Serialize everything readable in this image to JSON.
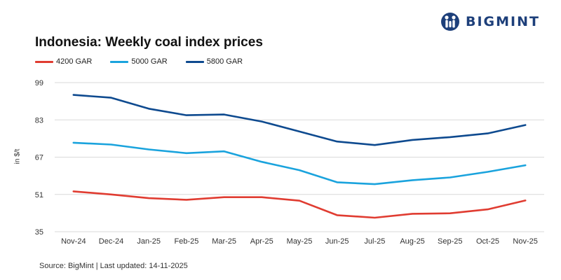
{
  "logo": {
    "text": "BIGMINT",
    "color": "#1d3f7a"
  },
  "footer": {
    "source": "Source: BigMint | Last updated: 14-11-2025"
  },
  "chart_data": {
    "type": "line",
    "title": "Indonesia: Weekly coal index prices",
    "ylabel": "in $/t",
    "xlabel": "",
    "ylim": [
      35,
      99
    ],
    "yticks": [
      35,
      51,
      67,
      83,
      99
    ],
    "grid": true,
    "legend_position": "top-left",
    "categories": [
      "Nov-24",
      "Dec-24",
      "Jan-25",
      "Feb-25",
      "Mar-25",
      "Apr-25",
      "May-25",
      "Jun-25",
      "Jul-25",
      "Aug-25",
      "Sep-25",
      "Oct-25",
      "Nov-25"
    ],
    "series": [
      {
        "name": "4200 GAR",
        "color": "#e03c31",
        "values": [
          52.3,
          51.0,
          49.4,
          48.7,
          49.8,
          49.8,
          48.3,
          42.1,
          41.0,
          42.7,
          42.9,
          44.6,
          48.4
        ]
      },
      {
        "name": "5000 GAR",
        "color": "#1aa3dd",
        "values": [
          73.2,
          72.4,
          70.3,
          68.7,
          69.5,
          65.0,
          61.4,
          56.2,
          55.4,
          57.1,
          58.3,
          60.7,
          63.5
        ]
      },
      {
        "name": "5800 GAR",
        "color": "#0e4a8f",
        "values": [
          93.7,
          92.5,
          87.8,
          85.0,
          85.3,
          82.3,
          78.0,
          73.7,
          72.2,
          74.4,
          75.6,
          77.2,
          80.8
        ]
      }
    ]
  }
}
